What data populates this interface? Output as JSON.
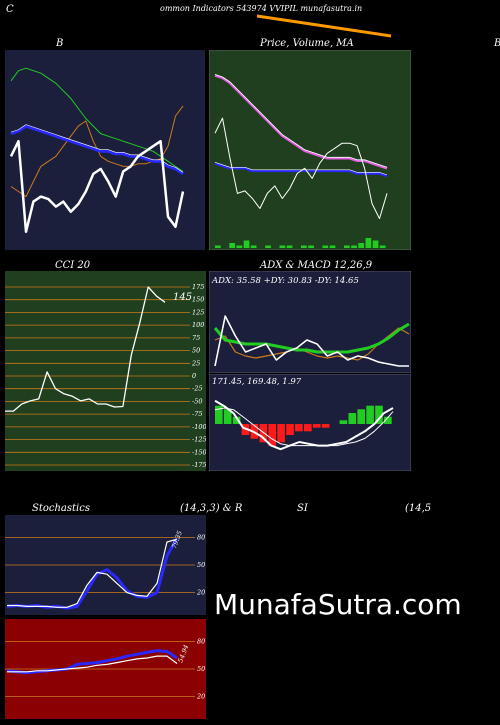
{
  "header": {
    "left_char": "C",
    "title": "ommon Indicators 543974 VVIPIL munafasutra.in"
  },
  "panels": {
    "bb": {
      "title": "B"
    },
    "price": {
      "title": "Price,  Volume,  MA"
    },
    "right_edge": {
      "title": "B"
    },
    "cci": {
      "title": "CCI 20",
      "value_label": "145"
    },
    "adx": {
      "title": "ADX  & MACD 12,26,9",
      "readout": "ADX: 35.58  +DY: 30.83 -DY: 14.65"
    },
    "macd": {
      "readout": "171.45,  169.48,  1.97"
    },
    "stoch": {
      "title_left": "Stochastics",
      "title_mid": "(14,3,3) & R",
      "title_rsi": "SI",
      "title_right": "(14,5",
      "value_label": "79.35"
    },
    "rsi": {
      "value_label": "54.94"
    }
  },
  "brand": "MunafaSutra.com",
  "colors": {
    "navy": "#1b1f3b",
    "green_panel": "#1f3f1f",
    "red_panel": "#8b0000",
    "orange": "#cc7a1a",
    "blue": "#2828ff",
    "green_line": "#22cc22",
    "white": "#ffffff"
  },
  "chart_data": [
    {
      "type": "line",
      "title": "B",
      "series": [
        {
          "values": [
            112,
            118,
            82,
            94,
            96,
            95,
            92,
            94,
            90,
            93,
            98,
            105,
            107,
            102,
            96,
            106,
            108,
            112,
            114,
            116,
            118,
            88,
            84,
            98
          ]
        },
        {
          "values": [
            121,
            122,
            124,
            123,
            122,
            121,
            120,
            119,
            118,
            117,
            116,
            115,
            114,
            114,
            113,
            113,
            112,
            112,
            111,
            110,
            110,
            108,
            107,
            105
          ]
        },
        {
          "values": [
            142,
            146,
            147,
            146,
            145,
            143,
            141,
            138,
            135,
            131,
            127,
            124,
            121,
            120,
            119,
            118,
            117,
            116,
            115,
            114,
            112,
            110,
            108,
            106
          ]
        },
        {
          "values": [
            100,
            98,
            96,
            102,
            108,
            110,
            112,
            116,
            120,
            124,
            126,
            118,
            112,
            110,
            109,
            108,
            108,
            109,
            109,
            110,
            111,
            116,
            128,
            132
          ]
        }
      ]
    },
    {
      "type": "line",
      "title": "Price,  Volume,  MA",
      "series": [
        {
          "values": [
            122,
            128,
            112,
            98,
            99,
            96,
            92,
            98,
            101,
            96,
            100,
            106,
            108,
            104,
            110,
            114,
            116,
            118,
            118,
            117,
            108,
            94,
            88,
            98
          ]
        },
        {
          "values": [
            145,
            144,
            142,
            139,
            136,
            133,
            130,
            127,
            124,
            121,
            119,
            117,
            115,
            114,
            113,
            112,
            112,
            112,
            112,
            111,
            111,
            110,
            109,
            108
          ]
        },
        {
          "values": [
            110,
            109,
            108,
            108,
            108,
            107,
            107,
            107,
            107,
            107,
            107,
            107,
            107,
            107,
            107,
            107,
            107,
            107,
            107,
            106,
            106,
            106,
            106,
            105
          ]
        }
      ],
      "volume": [
        1,
        0,
        2,
        1,
        3,
        1,
        0,
        1,
        0,
        1,
        1,
        0,
        1,
        1,
        0,
        1,
        1,
        0,
        1,
        1,
        2,
        4,
        3,
        1
      ]
    },
    {
      "type": "line",
      "title": "CCI 20",
      "ylim": [
        -175,
        175
      ],
      "yticks": [
        175,
        150,
        125,
        100,
        75,
        50,
        25,
        0,
        -25,
        -50,
        -75,
        -100,
        -125,
        -150,
        -175
      ],
      "values": [
        -69,
        -69,
        -55,
        -49,
        -45,
        8,
        -25,
        -35,
        -40,
        -49,
        -45,
        -55,
        -55,
        -61,
        -60,
        41,
        104,
        175,
        157,
        145
      ]
    },
    {
      "type": "line",
      "title": "ADX  & MACD 12,26,9",
      "series": [
        {
          "values": [
            34,
            28,
            27,
            26,
            26,
            26,
            25,
            24,
            23,
            23,
            22,
            22,
            22,
            22,
            23,
            24,
            26,
            29,
            33,
            36
          ]
        },
        {
          "values": [
            28,
            30,
            22,
            20,
            19,
            20,
            21,
            22,
            24,
            22,
            20,
            19,
            20,
            19,
            18,
            21,
            26,
            30,
            34,
            31
          ]
        },
        {
          "values": [
            15,
            40,
            30,
            22,
            24,
            26,
            18,
            22,
            24,
            28,
            26,
            20,
            22,
            18,
            20,
            19,
            17,
            16,
            15,
            15
          ]
        }
      ],
      "macd": [
        175,
        172,
        168,
        160,
        158,
        155,
        150,
        148,
        150,
        152,
        151,
        150,
        150,
        151,
        152,
        155,
        158,
        162,
        168,
        171
      ],
      "signal": [
        170,
        171,
        170,
        166,
        162,
        158,
        154,
        151,
        150,
        150,
        150,
        150,
        150,
        150,
        151,
        152,
        154,
        158,
        163,
        169
      ],
      "histogram": [
        5,
        4,
        2,
        -3,
        -4,
        -5,
        -6,
        -5,
        -3,
        -2,
        -2,
        -1,
        -1,
        0,
        1,
        3,
        4,
        5,
        5,
        2
      ]
    },
    {
      "type": "line",
      "title": "Stochastics",
      "yticks": [
        80,
        50,
        20
      ],
      "series": [
        {
          "values": [
            5,
            6,
            5,
            6,
            4,
            5,
            3,
            5,
            22,
            40,
            45,
            36,
            22,
            16,
            15,
            20,
            60,
            79
          ]
        },
        {
          "values": [
            6,
            6,
            5,
            5,
            5,
            4,
            4,
            8,
            28,
            42,
            40,
            30,
            20,
            17,
            16,
            30,
            75,
            78
          ]
        }
      ]
    },
    {
      "type": "line",
      "title": "SI",
      "yticks": [
        80,
        50,
        20
      ],
      "series": [
        {
          "values": [
            48,
            47,
            46,
            47,
            48,
            49,
            50,
            55,
            56,
            57,
            59,
            61,
            64,
            66,
            68,
            70,
            69,
            62
          ]
        },
        {
          "values": [
            47,
            47,
            47,
            48,
            48,
            49,
            50,
            51,
            52,
            54,
            55,
            57,
            59,
            61,
            62,
            64,
            64,
            56
          ]
        }
      ]
    }
  ]
}
